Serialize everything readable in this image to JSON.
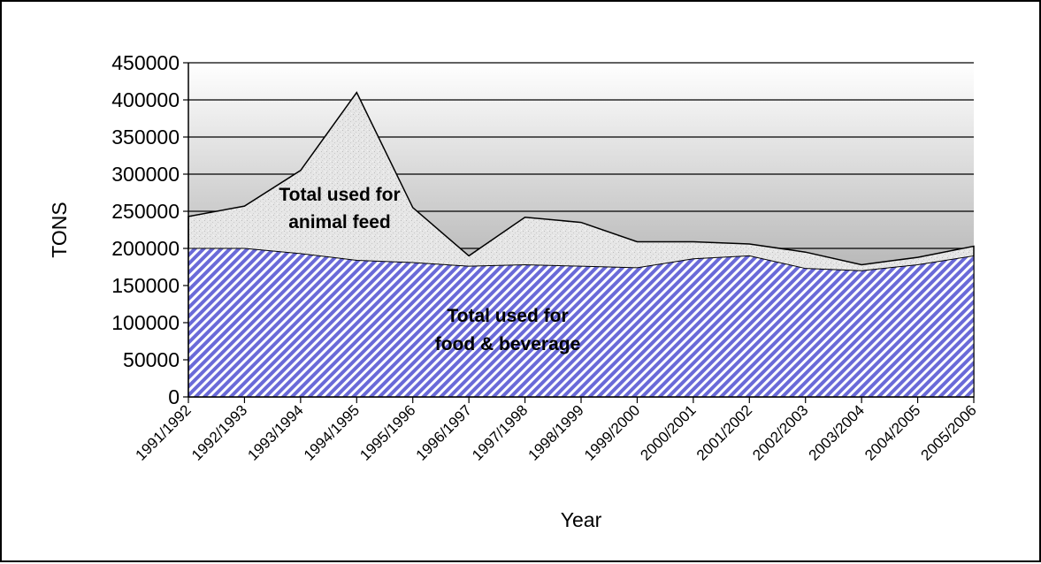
{
  "chart_data": {
    "type": "area",
    "stacked": false,
    "title": "",
    "xlabel": "Year",
    "ylabel": "TONS",
    "ylim": [
      0,
      450000
    ],
    "yticks": [
      0,
      50000,
      100000,
      150000,
      200000,
      250000,
      300000,
      350000,
      400000,
      450000
    ],
    "grid": true,
    "legend": "none",
    "categories": [
      "1991/1992",
      "1992/1993",
      "1993/1994",
      "1994/1995",
      "1995/1996",
      "1996/1997",
      "1997/1998",
      "1998/1999",
      "1999/2000",
      "2000/2001",
      "2001/2002",
      "2002/2003",
      "2003/2004",
      "2004/2005",
      "2005/2006"
    ],
    "series": [
      {
        "key": "total",
        "values": [
          243000,
          257000,
          305000,
          410000,
          255000,
          190000,
          242000,
          235000,
          209000,
          209000,
          206000,
          195000,
          178000,
          188000,
          203000
        ],
        "color": "#dcdcdc"
      },
      {
        "key": "food",
        "values": [
          200000,
          200000,
          193000,
          184000,
          181000,
          176000,
          178000,
          176000,
          174000,
          186000,
          190000,
          173000,
          170000,
          178000,
          190000
        ],
        "color": "#7777dd"
      }
    ],
    "annotations": [
      {
        "key": "animal",
        "lines": [
          "Total used for",
          "animal feed"
        ]
      },
      {
        "key": "food",
        "lines": [
          "Total used for",
          "food & beverage"
        ]
      }
    ]
  }
}
